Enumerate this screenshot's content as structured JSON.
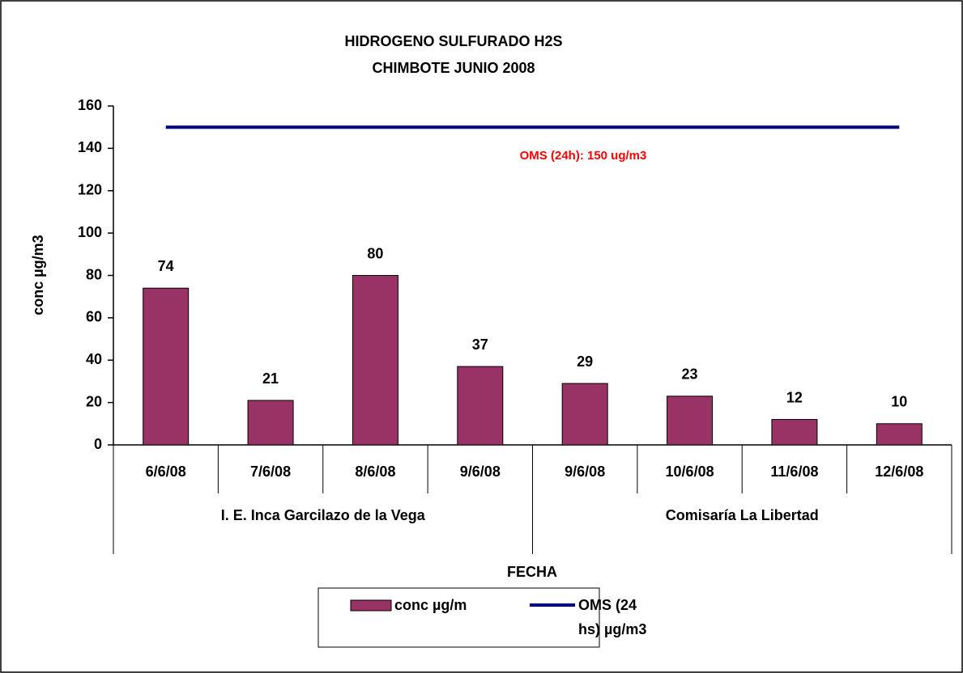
{
  "chart_data": {
    "type": "bar",
    "title": [
      "HIDROGENO SULFURADO H2S",
      "CHIMBOTE  JUNIO 2008"
    ],
    "y_label": "conc µg/m3",
    "x_label": "FECHA",
    "groups": [
      {
        "name": "I. E. Inca Garcilazo de la Vega",
        "categories": [
          "6/6/08",
          "7/6/08",
          "8/6/08",
          "9/6/08"
        ]
      },
      {
        "name": "Comisaría La Libertad",
        "categories": [
          "9/6/08",
          "10/6/08",
          "11/6/08",
          "12/6/08"
        ]
      }
    ],
    "series": [
      {
        "name": "conc µg/m",
        "type": "bar",
        "color": "#993366",
        "values": [
          74,
          21,
          80,
          37,
          29,
          23,
          12,
          10
        ]
      },
      {
        "name": "OMS (24 hs) µg/m3",
        "type": "line",
        "color": "#000080",
        "values": [
          150,
          150,
          150,
          150,
          150,
          150,
          150,
          150
        ]
      }
    ],
    "annotation": {
      "text": "OMS (24h): 150 ug/m3",
      "color": "#ff0000"
    },
    "ylim": [
      0,
      160
    ],
    "yticks": [
      0,
      20,
      40,
      60,
      80,
      100,
      120,
      140,
      160
    ],
    "grid": false,
    "legend": "bottom"
  }
}
